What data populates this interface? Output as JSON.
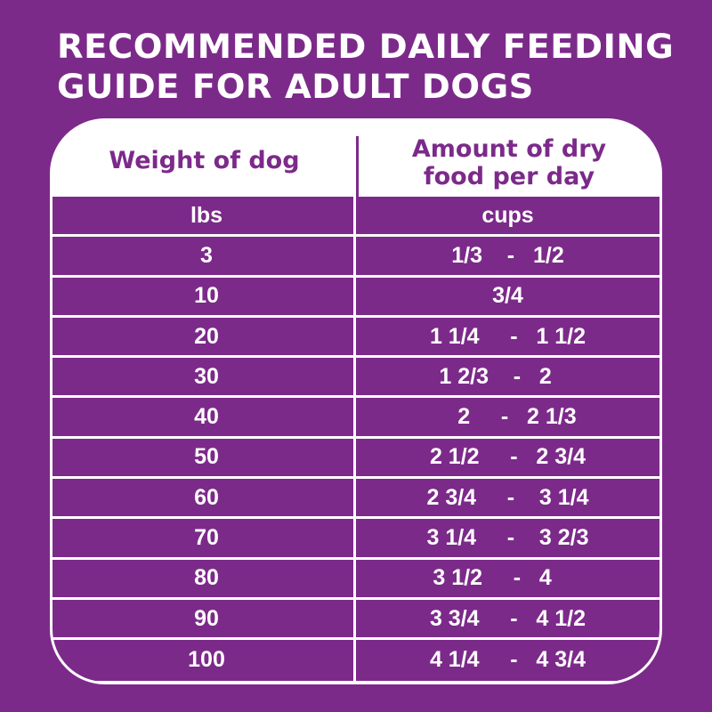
{
  "title": {
    "line1": "RECOMMENDED DAILY FEEDING",
    "line2": "GUIDE FOR ADULT DOGS"
  },
  "table": {
    "headers": {
      "weight": "Weight of dog",
      "amount_line1": "Amount of dry",
      "amount_line2": "food per day"
    },
    "units": {
      "weight": "lbs",
      "amount": "cups"
    },
    "rows": [
      {
        "weight": "3",
        "amount": "1/3    -   1/2"
      },
      {
        "weight": "10",
        "amount": "3/4"
      },
      {
        "weight": "20",
        "amount": "1 1/4     -   1 1/2"
      },
      {
        "weight": "30",
        "amount": "1 2/3    -   2    "
      },
      {
        "weight": "40",
        "amount": "   2     -   2 1/3"
      },
      {
        "weight": "50",
        "amount": "2 1/2     -   2 3/4"
      },
      {
        "weight": "60",
        "amount": "2 3/4     -    3 1/4"
      },
      {
        "weight": "70",
        "amount": "3 1/4     -    3 2/3"
      },
      {
        "weight": "80",
        "amount": "3 1/2     -   4     "
      },
      {
        "weight": "90",
        "amount": "3 3/4     -   4 1/2"
      },
      {
        "weight": "100",
        "amount": "4 1/4     -   4 3/4"
      }
    ]
  },
  "colors": {
    "background": "#7c2a8a",
    "text_light": "#ffffff",
    "header_text": "#7c2a8a"
  }
}
